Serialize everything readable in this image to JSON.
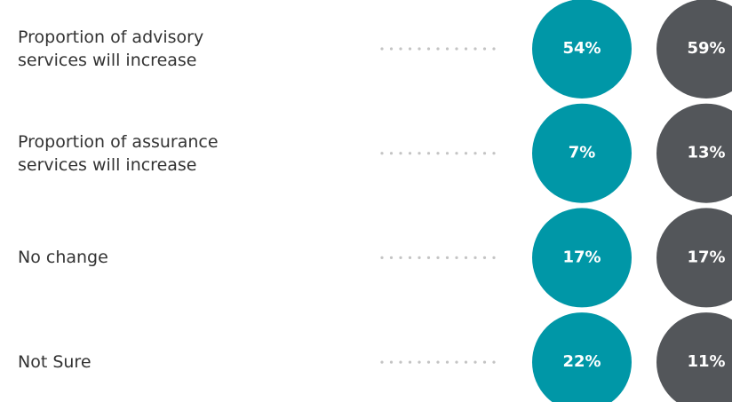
{
  "chart_data": {
    "type": "bubble-table",
    "categories": [
      "Proportion of advisory\nservices will increase",
      "Proportion of assurance\nservices will increase",
      "No change",
      "Not Sure"
    ],
    "series": [
      {
        "color": "#0097a7",
        "values": [
          54,
          7,
          17,
          22
        ],
        "value_labels": [
          "54%",
          "7%",
          "17%",
          "22%"
        ]
      },
      {
        "color": "#53565a",
        "values": [
          59,
          13,
          17,
          11
        ],
        "value_labels": [
          "59%",
          "13%",
          "17%",
          "11%"
        ]
      }
    ]
  }
}
